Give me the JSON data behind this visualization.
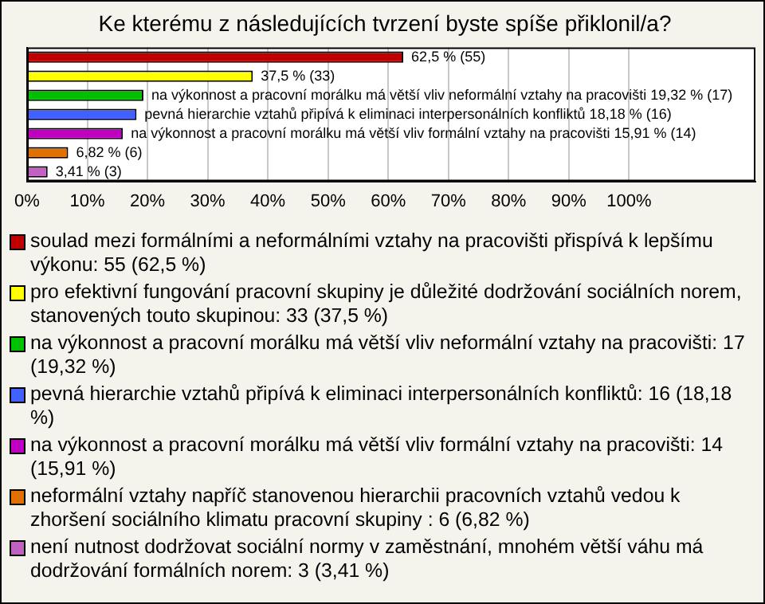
{
  "chart_data": {
    "type": "bar",
    "orientation": "horizontal",
    "title": "Ke kterému z následujících tvrzení byste spíše přiklonil/a?",
    "categories": [
      null,
      null,
      null,
      null,
      null,
      null,
      null
    ],
    "series": [
      {
        "name": "soulad mezi formálními a neformálními vztahy na pracovišti přispívá k lepšímu výkonu: 55 (62,5 %)",
        "color": "#c00000",
        "values": [
          62.5,
          null,
          null,
          null,
          null,
          null,
          null
        ],
        "value_labels": [
          "62,5 % (55)",
          null,
          null,
          null,
          null,
          null,
          null
        ]
      },
      {
        "name": "pro efektivní fungování pracovní skupiny je důležité dodržování sociálních norem, stanovených touto skupinou: 33 (37,5 %)",
        "color": "#ffff00",
        "values": [
          null,
          37.5,
          null,
          null,
          null,
          null,
          null
        ],
        "value_labels": [
          null,
          "37,5 % (33)",
          null,
          null,
          null,
          null,
          null
        ]
      },
      {
        "name": "na výkonnost a pracovní morálku má větší vliv neformální vztahy na pracovišti: 17 (19,32 %)",
        "color": "#00c000",
        "values": [
          null,
          null,
          19.32,
          null,
          null,
          null,
          null
        ],
        "value_labels": [
          null,
          null,
          "na výkonnost a pracovní morálku má větší vliv neformální vztahy na pracovišti 19,32 % (17)",
          null,
          null,
          null,
          null
        ]
      },
      {
        "name": "pevná hierarchie vztahů připívá k eliminaci interpersonálních konfliktů: 16 (18,18 %)",
        "color": "#4060ff",
        "values": [
          null,
          null,
          null,
          18.18,
          null,
          null,
          null
        ],
        "value_labels": [
          null,
          null,
          null,
          "pevná hierarchie vztahů připívá k eliminaci interpersonálních konfliktů 18,18 % (16)",
          null,
          null,
          null
        ]
      },
      {
        "name": "na výkonnost a pracovní morálku má větší vliv formální vztahy na pracovišti: 14 (15,91 %)",
        "color": "#c000c0",
        "values": [
          null,
          null,
          null,
          null,
          15.91,
          null,
          null
        ],
        "value_labels": [
          null,
          null,
          null,
          null,
          "na výkonnost a pracovní morálku má větší vliv formální vztahy na pracovišti 15,91 % (14)",
          null,
          null
        ]
      },
      {
        "name": "neformální vztahy napříč stanovenou hierarchii pracovních vztahů vedou k zhoršení sociálního klimatu pracovní skupiny : 6 (6,82 %)",
        "color": "#e07000",
        "values": [
          null,
          null,
          null,
          null,
          null,
          6.82,
          null
        ],
        "value_labels": [
          null,
          null,
          null,
          null,
          null,
          "6,82 % (6)",
          null
        ]
      },
      {
        "name": "není nutnost dodržovat sociální normy v zaměstnání, mnohém větší váhu má dodržování formálních norem: 3 (3,41 %)",
        "color": "#c060c0",
        "values": [
          null,
          null,
          null,
          null,
          null,
          null,
          3.41
        ],
        "value_labels": [
          null,
          null,
          null,
          null,
          null,
          null,
          "3,41 % (3)"
        ]
      }
    ],
    "xlim": [
      0,
      121
    ],
    "xticks": [
      {
        "value": 0,
        "label": "0%"
      },
      {
        "value": 10,
        "label": "10%"
      },
      {
        "value": 20,
        "label": "20%"
      },
      {
        "value": 30,
        "label": "30%"
      },
      {
        "value": 40,
        "label": "40%"
      },
      {
        "value": 50,
        "label": "50%"
      },
      {
        "value": 60,
        "label": "60%"
      },
      {
        "value": 70,
        "label": "70%"
      },
      {
        "value": 80,
        "label": "80%"
      },
      {
        "value": 90,
        "label": "90%"
      },
      {
        "value": 100,
        "label": "100%"
      }
    ],
    "grid": "x",
    "legend": "bottom",
    "tick_labels": "x"
  }
}
